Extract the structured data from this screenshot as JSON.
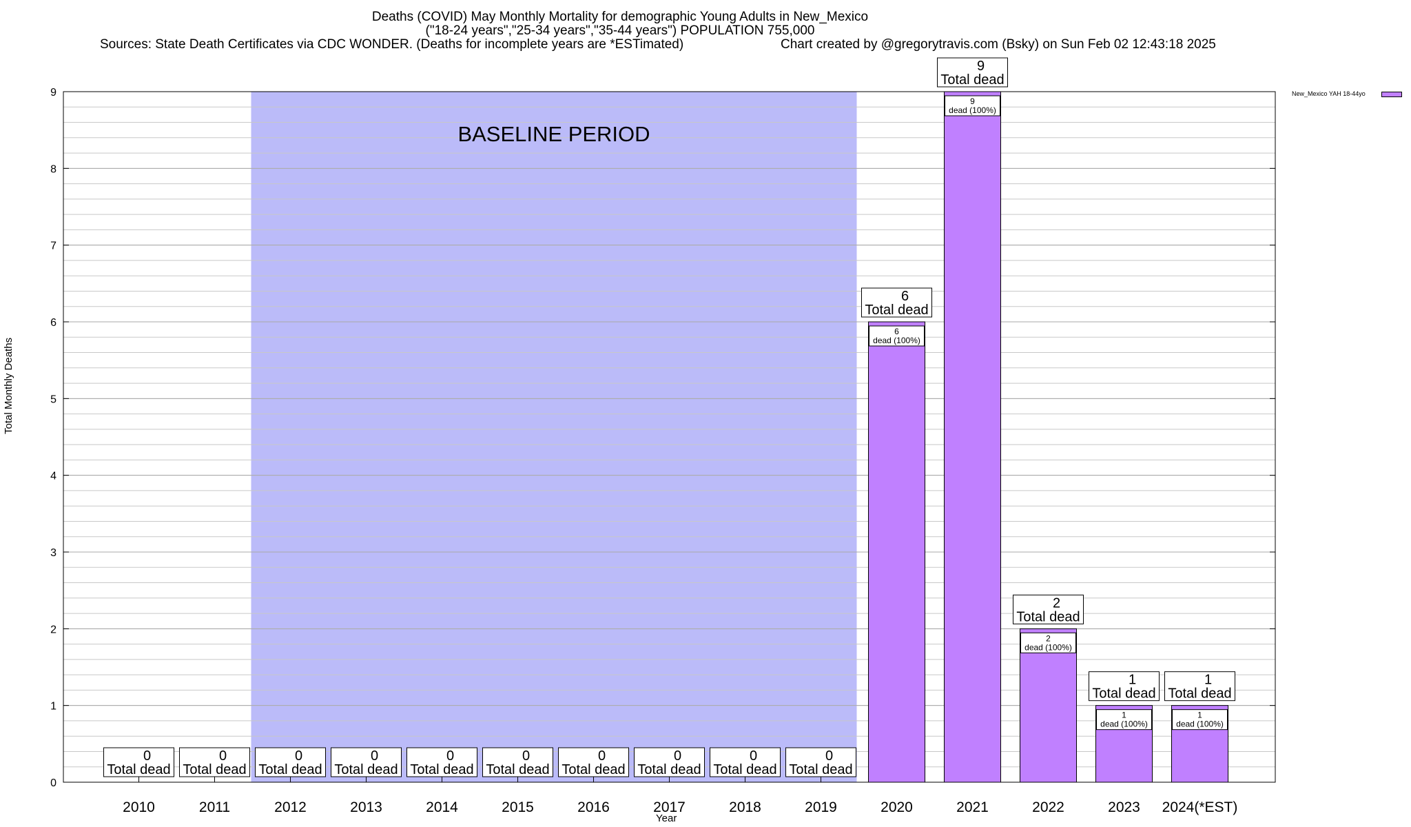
{
  "header": {
    "title_line1": "Deaths (COVID) May Monthly Mortality for demographic Young Adults in New_Mexico",
    "title_line2": "(\"18-24 years\",\"25-34 years\",\"35-44 years\") POPULATION 755,000",
    "sources": "Sources: State Death Certificates via CDC WONDER. (Deaths for incomplete years are *ESTimated)",
    "credit": "Chart created by @gregorytravis.com (Bsky) on Sun Feb 02 12:43:18 2025"
  },
  "chart_data": {
    "type": "bar",
    "categories": [
      "2010",
      "2011",
      "2012",
      "2013",
      "2014",
      "2015",
      "2016",
      "2017",
      "2018",
      "2019",
      "2020",
      "2021",
      "2022",
      "2023",
      "2024(*EST)"
    ],
    "series": [
      {
        "name": "New_Mexico YAH 18-44yo",
        "values": [
          0,
          0,
          0,
          0,
          0,
          0,
          0,
          0,
          0,
          0,
          6,
          9,
          2,
          1,
          1
        ],
        "color": "#c080ff"
      }
    ],
    "total_label": "Total dead",
    "inner_label_suffix": "dead (100%)",
    "baseline": {
      "label": "BASELINE PERIOD",
      "from": "2012",
      "to": "2019",
      "color": "#bbbbf9"
    },
    "xlabel": "Year",
    "ylabel": "Total Monthly Deaths",
    "ylim": [
      0,
      9
    ],
    "yticks": [
      0,
      1,
      2,
      3,
      4,
      5,
      6,
      7,
      8,
      9
    ],
    "grid": true,
    "legend": "top-right"
  }
}
